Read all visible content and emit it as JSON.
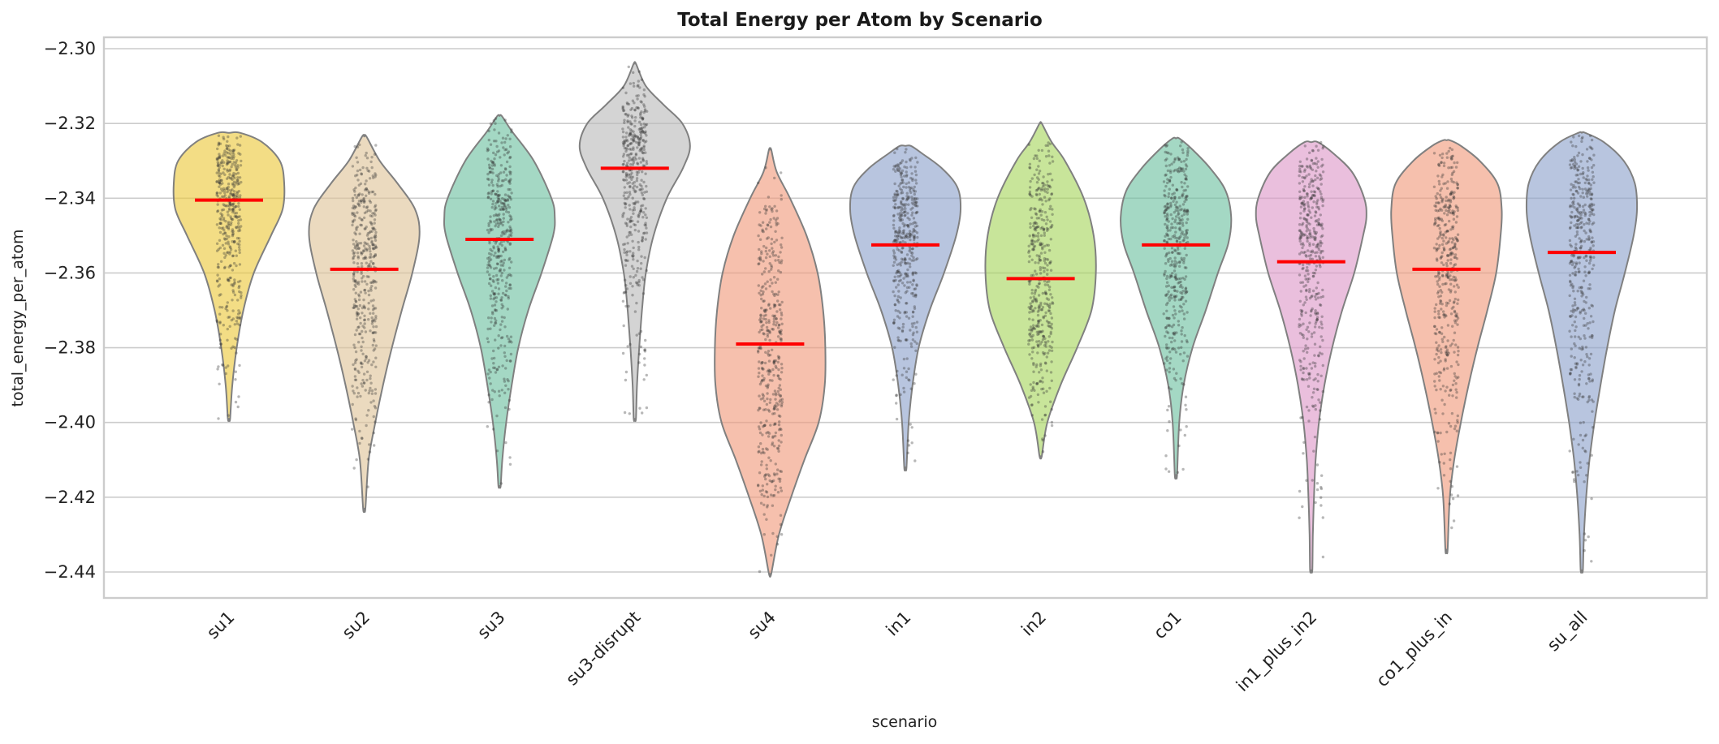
{
  "chart_data": {
    "type": "violin",
    "title": "Total Energy per Atom by Scenario",
    "xlabel": "scenario",
    "ylabel": "total_energy_per_atom",
    "ylim": [
      -2.447,
      -2.297
    ],
    "yticks": [
      -2.44,
      -2.42,
      -2.4,
      -2.38,
      -2.36,
      -2.34,
      -2.32,
      -2.3
    ],
    "ytick_labels": [
      "−2.44",
      "−2.42",
      "−2.40",
      "−2.38",
      "−2.36",
      "−2.34",
      "−2.32",
      "−2.30"
    ],
    "grid": true,
    "overlay": "jittered points (stripplot)",
    "median_marker_color": "#ff0000",
    "categories": [
      "su1",
      "su2",
      "su3",
      "su3-disrupt",
      "su4",
      "in1",
      "in2",
      "co1",
      "in1_plus_in2",
      "co1_plus_in",
      "su_all"
    ],
    "series": [
      {
        "name": "su1",
        "color": "#ebc83a",
        "median": -2.3405,
        "min": -2.399,
        "max": -2.3225,
        "profile": [
          [
            -2.399,
            0.02
          ],
          [
            -2.39,
            0.06
          ],
          [
            -2.38,
            0.14
          ],
          [
            -2.37,
            0.26
          ],
          [
            -2.36,
            0.45
          ],
          [
            -2.35,
            0.76
          ],
          [
            -2.343,
            0.97
          ],
          [
            -2.336,
            1.0
          ],
          [
            -2.33,
            0.92
          ],
          [
            -2.325,
            0.6
          ],
          [
            -2.3225,
            0.2
          ]
        ]
      },
      {
        "name": "su2",
        "color": "#dec498",
        "median": -2.359,
        "min": -2.423,
        "max": -2.3235,
        "profile": [
          [
            -2.423,
            0.02
          ],
          [
            -2.41,
            0.08
          ],
          [
            -2.4,
            0.2
          ],
          [
            -2.39,
            0.34
          ],
          [
            -2.38,
            0.5
          ],
          [
            -2.37,
            0.68
          ],
          [
            -2.36,
            0.87
          ],
          [
            -2.35,
            1.0
          ],
          [
            -2.343,
            0.92
          ],
          [
            -2.336,
            0.6
          ],
          [
            -2.33,
            0.28
          ],
          [
            -2.3235,
            0.04
          ]
        ]
      },
      {
        "name": "su3",
        "color": "#6cc0a0",
        "median": -2.351,
        "min": -2.417,
        "max": -2.318,
        "profile": [
          [
            -2.417,
            0.02
          ],
          [
            -2.41,
            0.05
          ],
          [
            -2.4,
            0.12
          ],
          [
            -2.39,
            0.22
          ],
          [
            -2.38,
            0.34
          ],
          [
            -2.37,
            0.52
          ],
          [
            -2.36,
            0.76
          ],
          [
            -2.35,
            0.97
          ],
          [
            -2.345,
            1.0
          ],
          [
            -2.34,
            0.94
          ],
          [
            -2.33,
            0.62
          ],
          [
            -2.322,
            0.22
          ],
          [
            -2.318,
            0.04
          ]
        ]
      },
      {
        "name": "su3-disrupt",
        "color": "#b9b9b9",
        "median": -2.332,
        "min": -2.399,
        "max": -2.304,
        "profile": [
          [
            -2.399,
            0.02
          ],
          [
            -2.39,
            0.04
          ],
          [
            -2.38,
            0.08
          ],
          [
            -2.37,
            0.13
          ],
          [
            -2.36,
            0.2
          ],
          [
            -2.35,
            0.34
          ],
          [
            -2.34,
            0.58
          ],
          [
            -2.332,
            0.87
          ],
          [
            -2.326,
            1.0
          ],
          [
            -2.32,
            0.86
          ],
          [
            -2.315,
            0.52
          ],
          [
            -2.31,
            0.2
          ],
          [
            -2.304,
            0.02
          ]
        ]
      },
      {
        "name": "su4",
        "color": "#f09a7b",
        "median": -2.379,
        "min": -2.4405,
        "max": -2.327,
        "profile": [
          [
            -2.4405,
            0.02
          ],
          [
            -2.43,
            0.16
          ],
          [
            -2.42,
            0.38
          ],
          [
            -2.41,
            0.62
          ],
          [
            -2.4,
            0.88
          ],
          [
            -2.39,
            0.99
          ],
          [
            -2.38,
            1.0
          ],
          [
            -2.37,
            0.96
          ],
          [
            -2.36,
            0.86
          ],
          [
            -2.35,
            0.66
          ],
          [
            -2.34,
            0.36
          ],
          [
            -2.333,
            0.12
          ],
          [
            -2.327,
            0.02
          ]
        ]
      },
      {
        "name": "in1",
        "color": "#8da2cb",
        "median": -2.3525,
        "min": -2.412,
        "max": -2.326,
        "profile": [
          [
            -2.412,
            0.02
          ],
          [
            -2.4,
            0.06
          ],
          [
            -2.39,
            0.13
          ],
          [
            -2.38,
            0.24
          ],
          [
            -2.37,
            0.44
          ],
          [
            -2.36,
            0.7
          ],
          [
            -2.35,
            0.92
          ],
          [
            -2.343,
            1.0
          ],
          [
            -2.337,
            0.94
          ],
          [
            -2.332,
            0.66
          ],
          [
            -2.328,
            0.3
          ],
          [
            -2.326,
            0.1
          ]
        ]
      },
      {
        "name": "in2",
        "color": "#a6d55c",
        "median": -2.3615,
        "min": -2.409,
        "max": -2.32,
        "profile": [
          [
            -2.409,
            0.02
          ],
          [
            -2.4,
            0.12
          ],
          [
            -2.39,
            0.36
          ],
          [
            -2.38,
            0.66
          ],
          [
            -2.37,
            0.92
          ],
          [
            -2.36,
            1.0
          ],
          [
            -2.35,
            0.96
          ],
          [
            -2.34,
            0.78
          ],
          [
            -2.33,
            0.44
          ],
          [
            -2.325,
            0.2
          ],
          [
            -2.32,
            0.02
          ]
        ]
      },
      {
        "name": "co1",
        "color": "#6cc0a0",
        "median": -2.3525,
        "min": -2.414,
        "max": -2.324,
        "profile": [
          [
            -2.414,
            0.02
          ],
          [
            -2.4,
            0.06
          ],
          [
            -2.39,
            0.14
          ],
          [
            -2.38,
            0.3
          ],
          [
            -2.37,
            0.54
          ],
          [
            -2.36,
            0.76
          ],
          [
            -2.352,
            0.95
          ],
          [
            -2.345,
            1.0
          ],
          [
            -2.338,
            0.9
          ],
          [
            -2.332,
            0.62
          ],
          [
            -2.327,
            0.3
          ],
          [
            -2.324,
            0.06
          ]
        ]
      },
      {
        "name": "in1_plus_in2",
        "color": "#dd97c8",
        "median": -2.357,
        "min": -2.4395,
        "max": -2.325,
        "profile": [
          [
            -2.4395,
            0.02
          ],
          [
            -2.43,
            0.03
          ],
          [
            -2.42,
            0.05
          ],
          [
            -2.41,
            0.08
          ],
          [
            -2.4,
            0.14
          ],
          [
            -2.39,
            0.24
          ],
          [
            -2.38,
            0.38
          ],
          [
            -2.37,
            0.56
          ],
          [
            -2.36,
            0.78
          ],
          [
            -2.35,
            0.94
          ],
          [
            -2.345,
            1.0
          ],
          [
            -2.34,
            0.96
          ],
          [
            -2.333,
            0.74
          ],
          [
            -2.328,
            0.4
          ],
          [
            -2.325,
            0.12
          ]
        ]
      },
      {
        "name": "co1_plus_in",
        "color": "#f09a7b",
        "median": -2.359,
        "min": -2.434,
        "max": -2.3245,
        "profile": [
          [
            -2.434,
            0.02
          ],
          [
            -2.42,
            0.06
          ],
          [
            -2.41,
            0.14
          ],
          [
            -2.4,
            0.26
          ],
          [
            -2.39,
            0.4
          ],
          [
            -2.38,
            0.56
          ],
          [
            -2.37,
            0.74
          ],
          [
            -2.36,
            0.9
          ],
          [
            -2.35,
            0.98
          ],
          [
            -2.343,
            1.0
          ],
          [
            -2.336,
            0.92
          ],
          [
            -2.33,
            0.6
          ],
          [
            -2.326,
            0.26
          ],
          [
            -2.3245,
            0.06
          ]
        ]
      },
      {
        "name": "su_all",
        "color": "#8da2cb",
        "median": -2.3545,
        "min": -2.4395,
        "max": -2.3225,
        "profile": [
          [
            -2.4395,
            0.02
          ],
          [
            -2.43,
            0.04
          ],
          [
            -2.42,
            0.08
          ],
          [
            -2.41,
            0.14
          ],
          [
            -2.4,
            0.23
          ],
          [
            -2.39,
            0.34
          ],
          [
            -2.38,
            0.46
          ],
          [
            -2.37,
            0.6
          ],
          [
            -2.36,
            0.78
          ],
          [
            -2.35,
            0.94
          ],
          [
            -2.343,
            1.0
          ],
          [
            -2.336,
            0.96
          ],
          [
            -2.33,
            0.76
          ],
          [
            -2.325,
            0.4
          ],
          [
            -2.3225,
            0.06
          ]
        ]
      }
    ]
  }
}
